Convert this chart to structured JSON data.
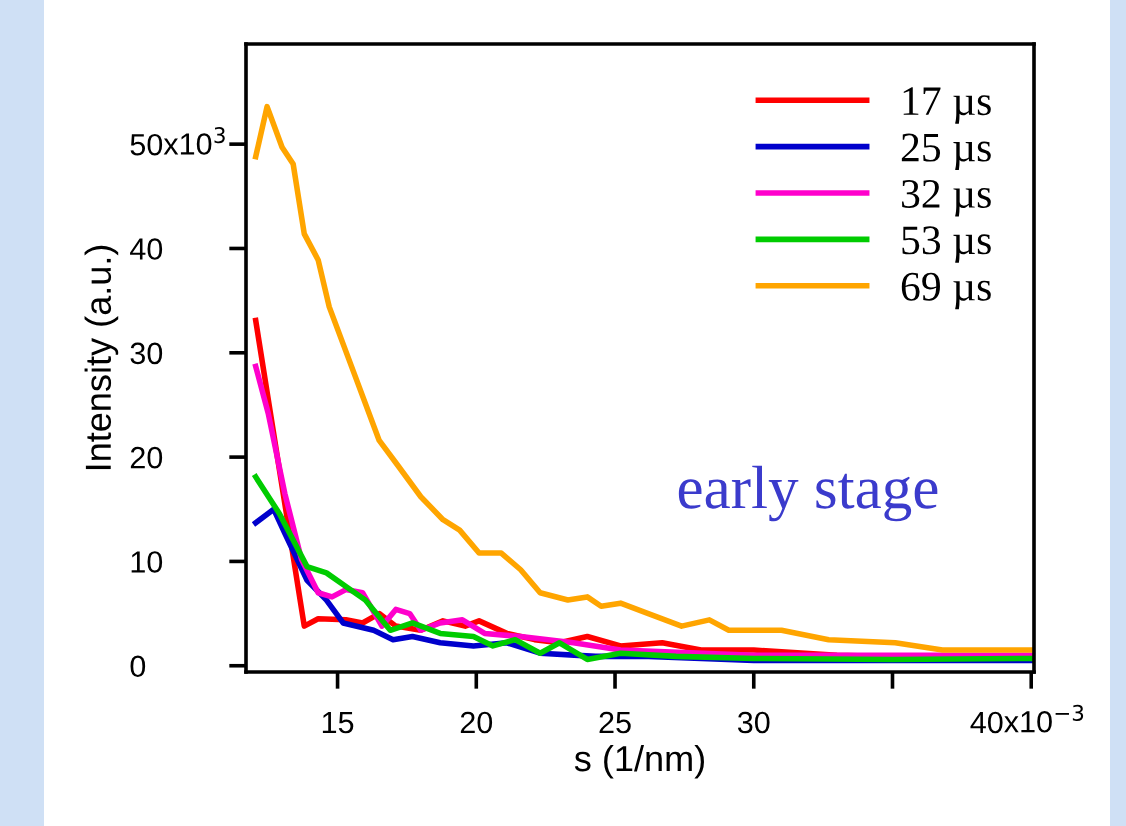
{
  "chart_data": {
    "type": "line",
    "xlabel": "s (1/nm)",
    "ylabel": "Intensity (a.u.)",
    "xlim": [
      11.7,
      40.1
    ],
    "ylim": [
      -0.6,
      59.6
    ],
    "xticks": [
      15,
      20,
      25,
      30,
      {
        "value": 35,
        "label": null
      },
      40
    ],
    "yticks": [
      0,
      10,
      20,
      30,
      40,
      50
    ],
    "legend": "top right",
    "annotations": [
      "early stage",
      "x10$^{−3}$",
      "x10$^{3}$"
    ],
    "series": [
      {
        "name": "17 µs",
        "color": "#ff0000",
        "x": [
          12.05,
          13.8,
          14.3,
          15.3,
          15.9,
          16.5,
          17.1,
          18.0,
          18.8,
          19.6,
          20.1,
          21.1,
          22.1,
          23.0,
          24.0,
          25.2,
          26.7,
          28.1,
          30.0,
          33.0,
          36.0,
          40.0
        ],
        "values": [
          33.1,
          3.8,
          4.5,
          4.4,
          4.1,
          5.0,
          3.8,
          3.4,
          4.3,
          3.8,
          4.3,
          3.1,
          2.5,
          2.2,
          2.8,
          1.9,
          2.2,
          1.5,
          1.5,
          1.0,
          0.8,
          0.8
        ]
      },
      {
        "name": "25 µs",
        "color": "#0000cc",
        "x": [
          12.05,
          12.7,
          13.1,
          13.9,
          14.6,
          15.2,
          16.3,
          17.0,
          17.7,
          18.7,
          19.9,
          21.1,
          22.3,
          24.3,
          26.2,
          30.0,
          35.0,
          40.0
        ],
        "values": [
          13.7,
          15.0,
          12.7,
          8.2,
          6.3,
          4.1,
          3.4,
          2.5,
          2.8,
          2.2,
          1.9,
          2.2,
          1.2,
          0.9,
          0.9,
          0.5,
          0.5,
          0.5
        ]
      },
      {
        "name": "32 µs",
        "color": "#ff00cc",
        "x": [
          12.05,
          12.5,
          13.1,
          13.7,
          14.3,
          14.8,
          15.3,
          15.9,
          16.6,
          17.1,
          17.6,
          18.0,
          18.7,
          19.5,
          20.3,
          21.6,
          23.5,
          25.2,
          30.0,
          35.0,
          40.0
        ],
        "values": [
          28.7,
          24.2,
          16.5,
          10.2,
          7.0,
          6.6,
          7.3,
          7.0,
          3.8,
          5.4,
          5.0,
          3.4,
          4.1,
          4.4,
          3.1,
          2.8,
          2.2,
          1.5,
          1.0,
          1.0,
          1.0
        ]
      },
      {
        "name": "53 µs",
        "color": "#00cc00",
        "x": [
          12.05,
          12.9,
          13.9,
          14.6,
          15.3,
          16.0,
          16.9,
          17.7,
          18.7,
          19.9,
          20.6,
          21.4,
          22.3,
          23.0,
          24.0,
          25.2,
          27.2,
          30.0,
          35.0,
          40.0
        ],
        "values": [
          18.1,
          14.6,
          9.5,
          8.9,
          7.6,
          6.3,
          3.4,
          4.1,
          3.1,
          2.8,
          1.9,
          2.5,
          1.2,
          2.2,
          0.6,
          1.2,
          0.9,
          0.7,
          0.6,
          0.7
        ]
      },
      {
        "name": "69 µs",
        "color": "#ffa500",
        "x": [
          12.05,
          12.46,
          13.0,
          13.4,
          13.8,
          14.3,
          14.7,
          15.6,
          16.5,
          17.2,
          18.0,
          18.8,
          19.4,
          20.1,
          20.9,
          21.6,
          22.3,
          23.3,
          24.0,
          24.5,
          25.2,
          26.2,
          27.4,
          28.4,
          29.1,
          31.0,
          32.7,
          35.1,
          36.8,
          40.0
        ],
        "values": [
          48.8,
          53.6,
          49.7,
          48.1,
          41.4,
          38.9,
          34.4,
          28.0,
          21.6,
          19.1,
          16.2,
          14.0,
          13.0,
          10.8,
          10.8,
          9.2,
          7.0,
          6.3,
          6.6,
          5.7,
          6.0,
          5.0,
          3.8,
          4.4,
          3.4,
          3.4,
          2.5,
          2.2,
          1.5,
          1.5
        ]
      }
    ]
  }
}
